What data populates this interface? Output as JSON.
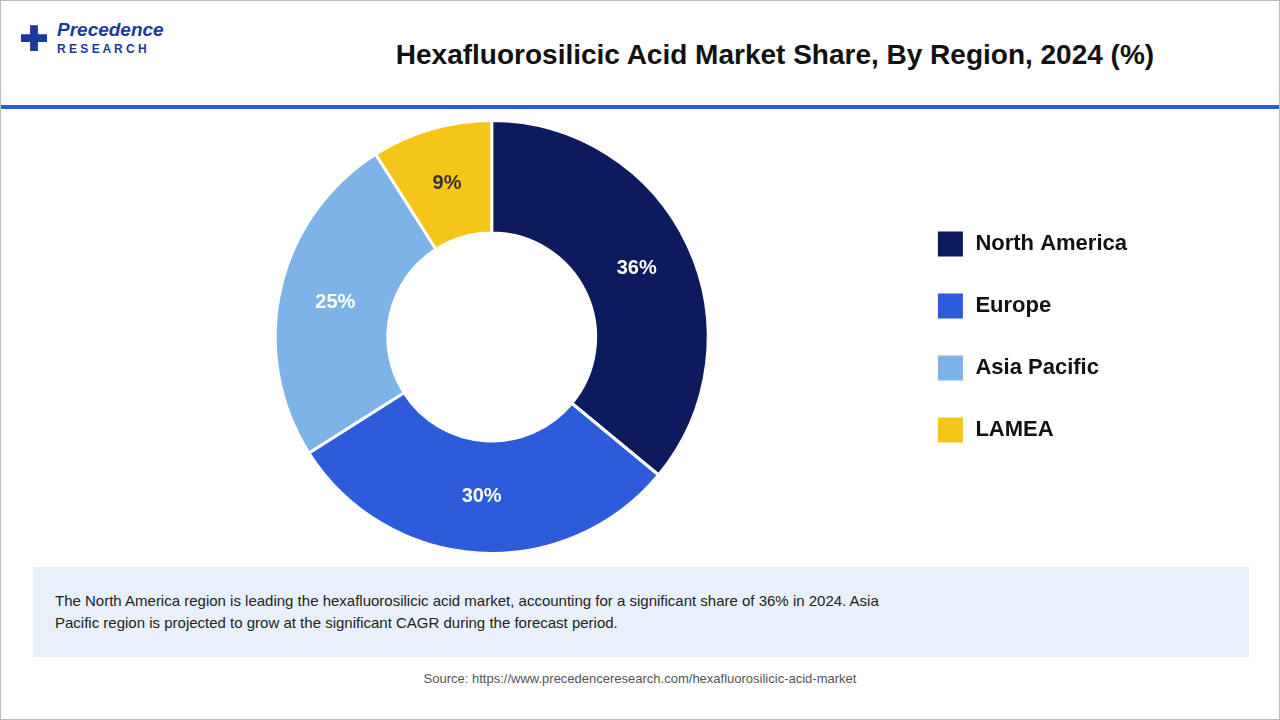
{
  "chart_data": {
    "type": "doughnut",
    "title": "Hexafluorosilicic Acid Market Share, By Region, 2024 (%)",
    "categories": [
      "North America",
      "Europe",
      "Asia Pacific",
      "LAMEA"
    ],
    "values": [
      36,
      30,
      25,
      9
    ],
    "value_labels": [
      "36%",
      "30%",
      "25%",
      "9%"
    ],
    "colors": [
      "#0d1b5e",
      "#2e5bdb",
      "#7eb3e8",
      "#f5c518"
    ],
    "data_labels": true,
    "legend": "right",
    "annotation": "The North America region is leading the hexafluorosilicic acid market, accounting for a significant share of 36% in 2024. Asia\nPacific region is projected to grow at the significant CAGR during the forecast period.",
    "source": "Source: https://www.precedenceresearch.com/hexafluorosilicic-acid-market",
    "logo": [
      "Precedence",
      "R E S E A R C H"
    ]
  }
}
